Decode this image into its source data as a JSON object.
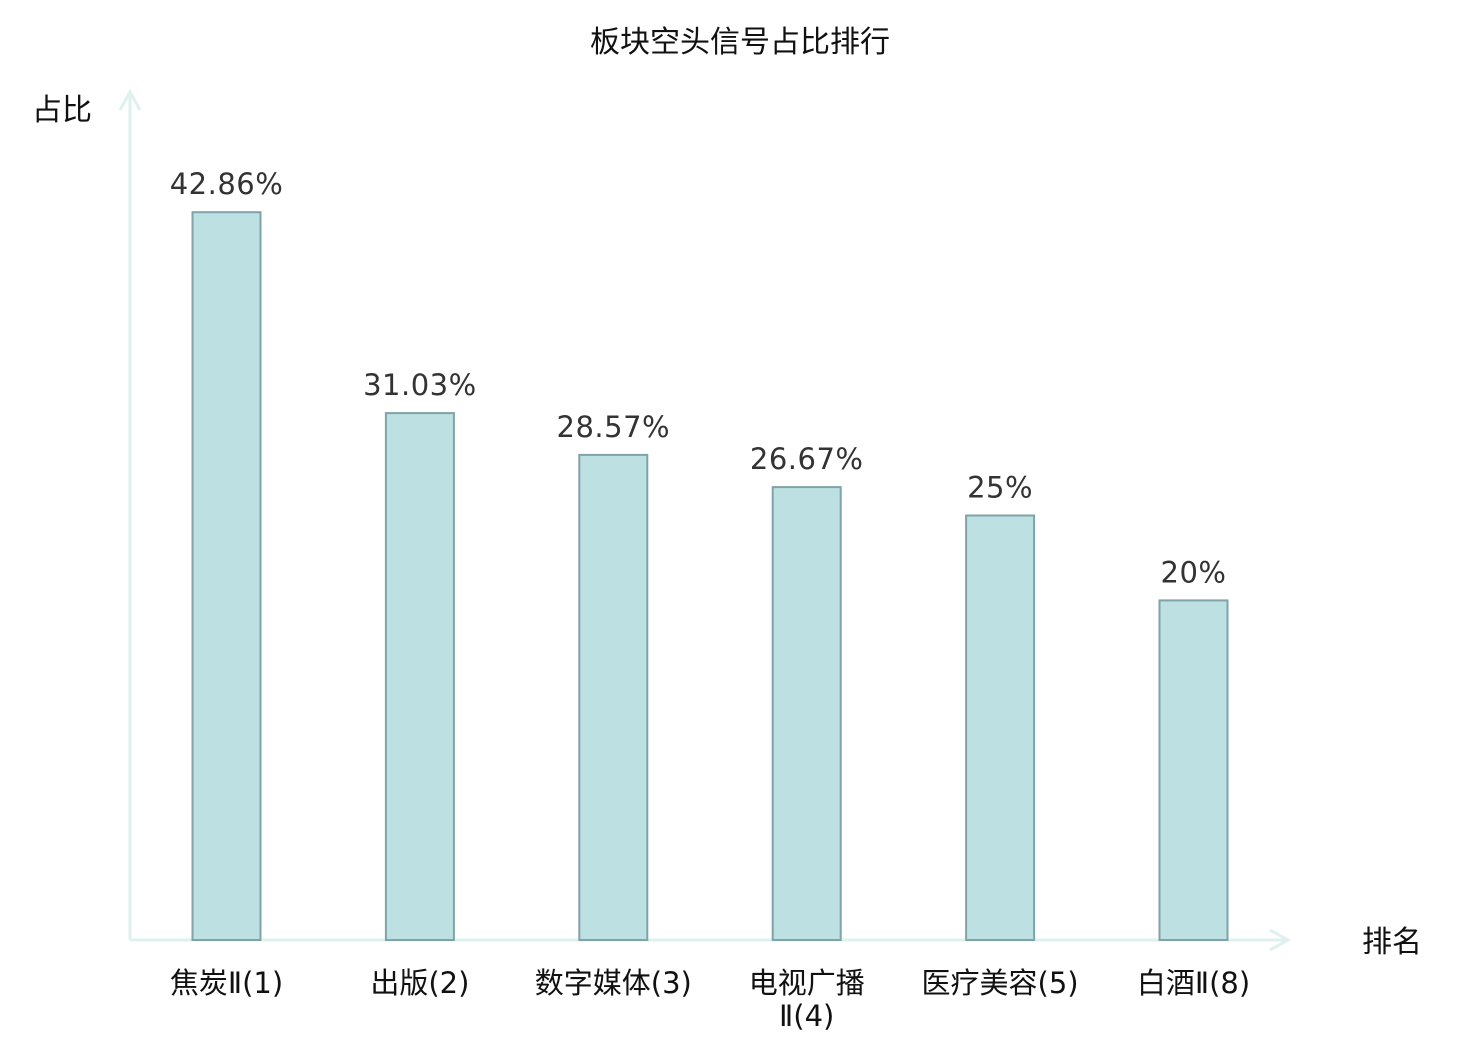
{
  "chart_data": {
    "type": "bar",
    "title": "板块空头信号占比排行",
    "xlabel": "排名",
    "ylabel": "占比",
    "categories": [
      "焦炭Ⅱ(1)",
      "出版(2)",
      "数字媒体(3)",
      "电视广播Ⅱ(4)",
      "医疗美容(5)",
      "白酒Ⅱ(8)"
    ],
    "category_lines": [
      [
        "焦炭Ⅱ(1)"
      ],
      [
        "出版(2)"
      ],
      [
        "数字媒体(3)"
      ],
      [
        "电视广播",
        "Ⅱ(4)"
      ],
      [
        "医疗美容(5)"
      ],
      [
        "白酒Ⅱ(8)"
      ]
    ],
    "values": [
      42.86,
      31.03,
      28.57,
      26.67,
      25,
      20
    ],
    "value_labels": [
      "42.86%",
      "31.03%",
      "28.57%",
      "26.67%",
      "25%",
      "20%"
    ],
    "highlighted_category": "白酒Ⅱ(8)",
    "ylim": [
      0,
      50
    ],
    "grid": false,
    "colors": {
      "bar_fill": "#bde0e3",
      "bar_stroke": "#7fa3a6",
      "axis": "#dff1ef",
      "highlight_label": "#e01010",
      "label": "#111111",
      "value_label": "#333333"
    }
  }
}
